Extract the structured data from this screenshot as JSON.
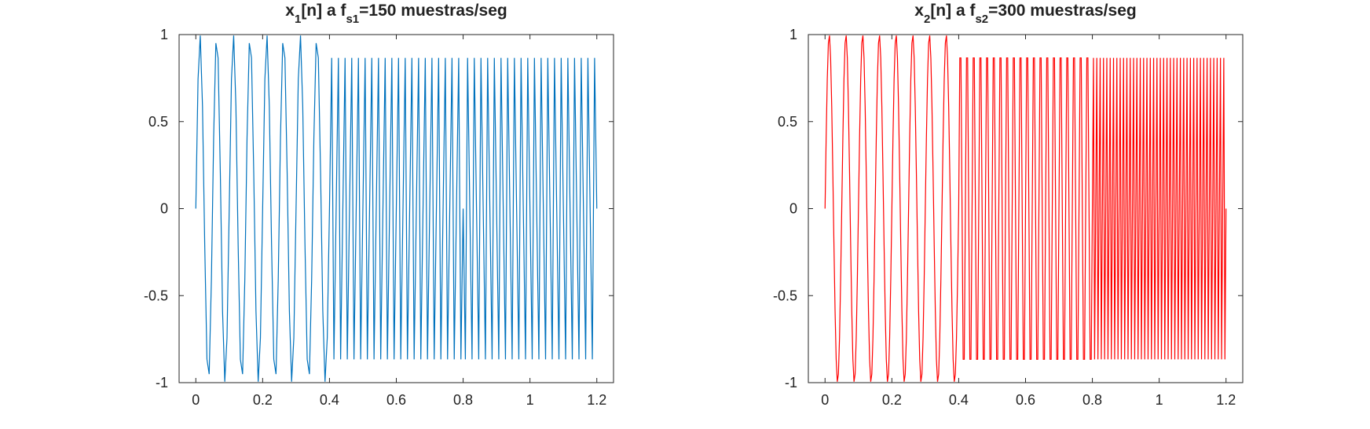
{
  "chart_data": [
    {
      "type": "line",
      "title_parts": {
        "base": "x",
        "sub1": "1",
        "mid": "[n] a f",
        "sub2": "s1",
        "rest": "=150 muestras/seg"
      },
      "xlabel": "",
      "ylabel": "",
      "xlim": [
        -0.05,
        1.25
      ],
      "ylim": [
        -1,
        1
      ],
      "xticks": [
        0,
        0.2,
        0.4,
        0.6,
        0.8,
        1,
        1.2
      ],
      "xtick_labels": [
        "0",
        "0.2",
        "0.4",
        "0.6",
        "0.8",
        "1",
        "1.2"
      ],
      "yticks": [
        -1,
        -0.5,
        0,
        0.5,
        1
      ],
      "ytick_labels": [
        "-1",
        "-0.5",
        "0",
        "0.5",
        "1"
      ],
      "grid": false,
      "color": "#0072BD",
      "sample_rate": 150,
      "segments": [
        {
          "t_start": 0,
          "t_end": 0.4,
          "frequency": 20
        },
        {
          "t_start": 0.4,
          "t_end": 0.8,
          "frequency": 50
        },
        {
          "t_start": 0.8,
          "t_end": 1.2,
          "frequency": 100
        }
      ]
    },
    {
      "type": "line",
      "title_parts": {
        "base": "x",
        "sub1": "2",
        "mid": "[n] a f",
        "sub2": "s2",
        "rest": "=300 muestras/seg"
      },
      "xlabel": "",
      "ylabel": "",
      "xlim": [
        -0.05,
        1.25
      ],
      "ylim": [
        -1,
        1
      ],
      "xticks": [
        0,
        0.2,
        0.4,
        0.6,
        0.8,
        1,
        1.2
      ],
      "xtick_labels": [
        "0",
        "0.2",
        "0.4",
        "0.6",
        "0.8",
        "1",
        "1.2"
      ],
      "yticks": [
        -1,
        -0.5,
        0,
        0.5,
        1
      ],
      "ytick_labels": [
        "-1",
        "-0.5",
        "0",
        "0.5",
        "1"
      ],
      "grid": false,
      "color": "#FF0000",
      "sample_rate": 300,
      "segments": [
        {
          "t_start": 0,
          "t_end": 0.4,
          "frequency": 20
        },
        {
          "t_start": 0.4,
          "t_end": 0.8,
          "frequency": 50
        },
        {
          "t_start": 0.8,
          "t_end": 1.2,
          "frequency": 100
        }
      ]
    }
  ]
}
